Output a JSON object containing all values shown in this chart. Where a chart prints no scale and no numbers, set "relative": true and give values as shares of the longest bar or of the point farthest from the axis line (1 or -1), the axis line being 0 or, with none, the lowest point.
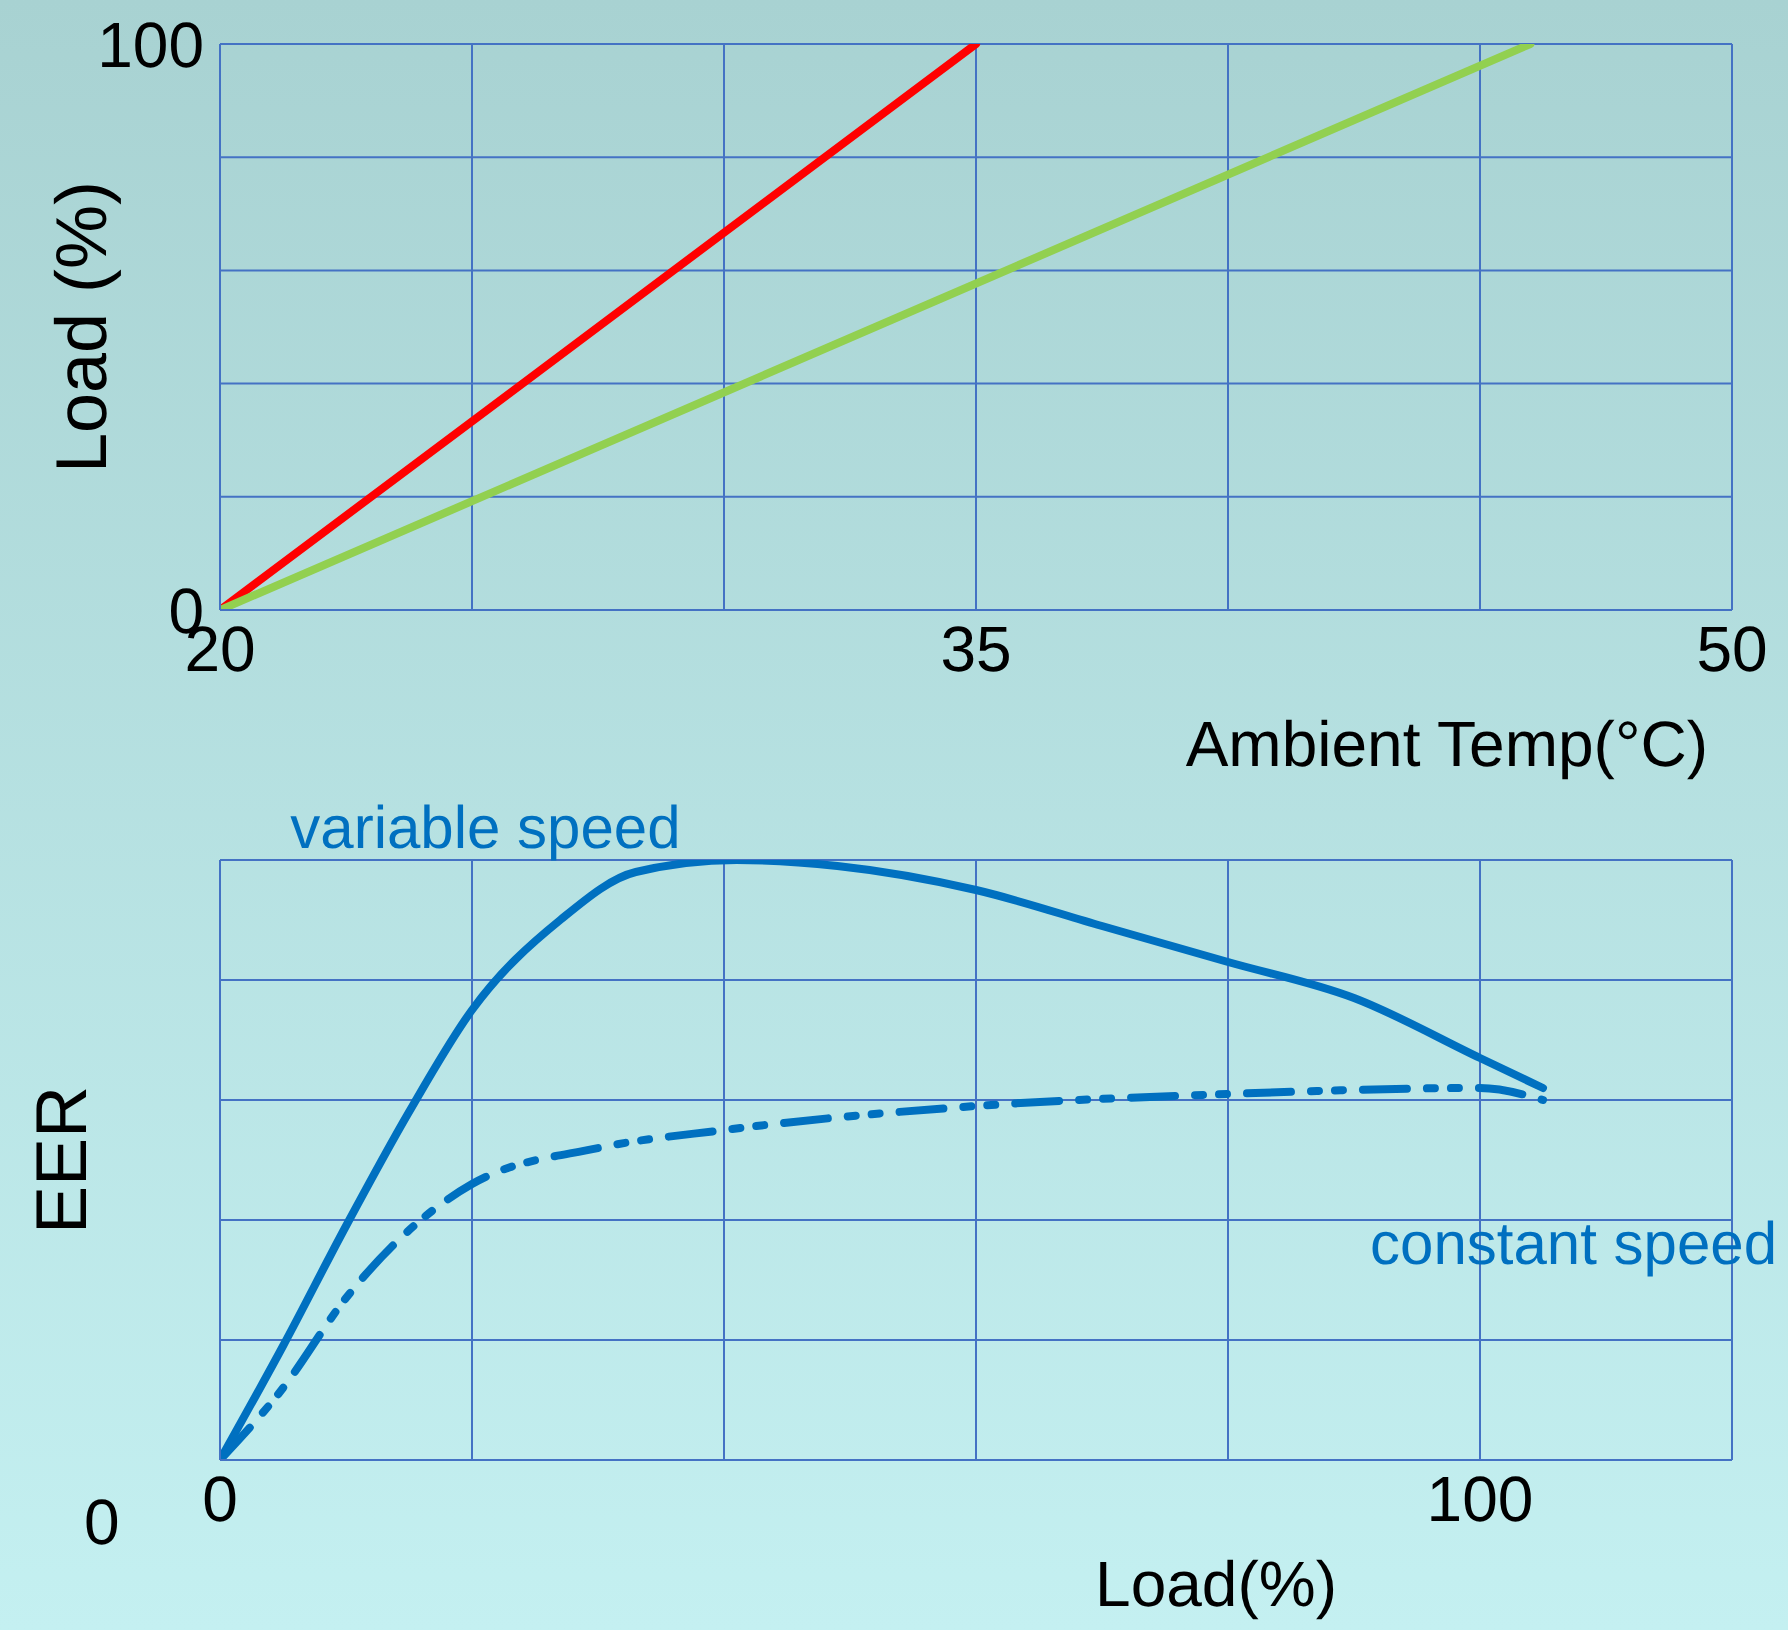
{
  "chart_data": [
    {
      "type": "line",
      "xlabel": "Ambient Temp(°C)",
      "ylabel": "Load (%)",
      "xlim": [
        20,
        50
      ],
      "xticks": [
        20,
        {
          "value": 25,
          "label": null
        },
        {
          "value": 30,
          "label": null
        },
        35,
        {
          "value": 40,
          "label": null
        },
        {
          "value": 45,
          "label": null
        },
        50
      ],
      "ylim": [
        0,
        100
      ],
      "yticks": [
        0,
        {
          "value": 20,
          "label": null
        },
        {
          "value": 40,
          "label": null
        },
        {
          "value": 60,
          "label": null
        },
        {
          "value": 80,
          "label": null
        },
        100
      ],
      "grid": true,
      "marker": "none",
      "series": [
        {
          "color": "#ff0000",
          "x": [
            20,
            35
          ],
          "values": [
            0,
            100
          ]
        },
        {
          "color": "#92d050",
          "x": [
            20,
            46
          ],
          "values": [
            0,
            100
          ]
        }
      ]
    },
    {
      "type": "line",
      "xlabel": "Load(%)",
      "ylabel": "EER",
      "relative": true,
      "xlim": [
        0,
        120
      ],
      "xticks": [
        0,
        {
          "value": 20,
          "label": null
        },
        {
          "value": 40,
          "label": null
        },
        {
          "value": 60,
          "label": null
        },
        {
          "value": 80,
          "label": null
        },
        100,
        {
          "value": 120,
          "label": null
        }
      ],
      "grid": true,
      "marker": "none",
      "annotations": [
        "0"
      ],
      "series": [
        {
          "name": "variable speed",
          "color": "#0070c0",
          "line_style": "solid",
          "x": [
            0,
            5,
            10,
            15,
            20,
            27,
            33,
            41,
            49,
            60,
            70,
            80,
            90,
            100,
            105
          ],
          "values": [
            0,
            0.19,
            0.39,
            0.58,
            0.75,
            0.9,
            0.98,
            1,
            0.99,
            0.95,
            0.89,
            0.83,
            0.77,
            0.67,
            0.62
          ]
        },
        {
          "name": "constant speed",
          "color": "#0070c0",
          "line_style": "dashed",
          "x": [
            0,
            5,
            10,
            20,
            30,
            40,
            60,
            80,
            100,
            105
          ],
          "values": [
            0,
            0.12,
            0.27,
            0.46,
            0.52,
            0.55,
            0.59,
            0.61,
            0.62,
            0.6
          ]
        }
      ]
    }
  ]
}
